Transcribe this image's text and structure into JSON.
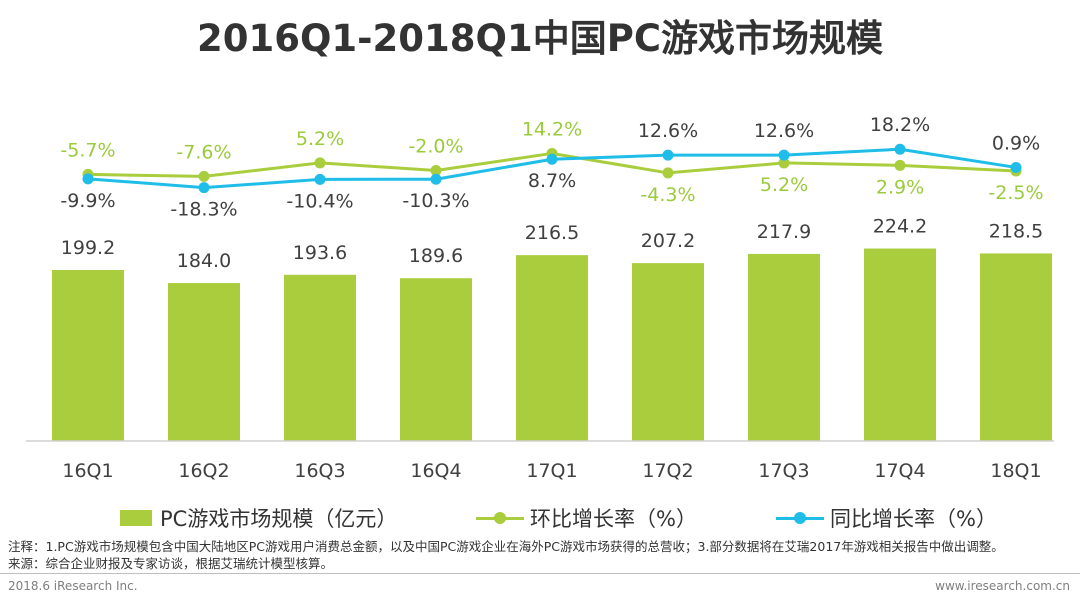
{
  "title": "2016Q1-2018Q1中国PC游戏市场规模",
  "colors": {
    "bar": "#a9cd3c",
    "qoq": "#a9cd3c",
    "qoq_label": "#9acb3a",
    "yoy": "#1fbde8",
    "label_dark": "#404040"
  },
  "chart_data": {
    "type": "bar",
    "title": "2016Q1-2018Q1中国PC游戏市场规模",
    "categories": [
      "16Q1",
      "16Q2",
      "16Q3",
      "16Q4",
      "17Q1",
      "17Q2",
      "17Q3",
      "17Q4",
      "18Q1"
    ],
    "bar_ylim": [
      0,
      350
    ],
    "line_ylim": [
      -40,
      20
    ],
    "series": [
      {
        "name": "PC游戏市场规模（亿元）",
        "type": "bar",
        "values": [
          199.2,
          184.0,
          193.6,
          189.6,
          216.5,
          207.2,
          217.9,
          224.2,
          218.5
        ],
        "labels": [
          "199.2",
          "184.0",
          "193.6",
          "189.6",
          "216.5",
          "207.2",
          "217.9",
          "224.2",
          "218.5"
        ]
      },
      {
        "name": "环比增长率（%）",
        "type": "line",
        "values": [
          -5.7,
          -7.6,
          5.2,
          -2.0,
          14.2,
          -4.3,
          5.2,
          2.9,
          -2.5
        ],
        "labels": [
          "-5.7%",
          "-7.6%",
          "5.2%",
          "-2.0%",
          "14.2%",
          "-4.3%",
          "5.2%",
          "2.9%",
          "-2.5%"
        ]
      },
      {
        "name": "同比增长率（%）",
        "type": "line",
        "values": [
          -9.9,
          -18.3,
          -10.4,
          -10.3,
          8.7,
          12.6,
          12.6,
          18.2,
          0.9
        ],
        "labels": [
          "-9.9%",
          "-18.3%",
          "-10.4%",
          "-10.3%",
          "8.7%",
          "12.6%",
          "12.6%",
          "18.2%",
          "0.9%"
        ]
      }
    ],
    "legend": {
      "position": "bottom"
    }
  },
  "legend": {
    "bar": "PC游戏市场规模（亿元）",
    "qoq": "环比增长率（%）",
    "yoy": "同比增长率（%）"
  },
  "note_lines": [
    "注释：1.PC游戏市场规模包含中国大陆地区PC游戏用户消费总金额，以及中国PC游戏企业在海外PC游戏市场获得的总营收；3.部分数据将在艾瑞2017年游戏相关报告中做出调整。",
    "来源：综合企业财报及专家访谈，根据艾瑞统计模型核算。"
  ],
  "footer": {
    "left": "2018.6 iResearch Inc.",
    "right": "www.iresearch.com.cn"
  }
}
